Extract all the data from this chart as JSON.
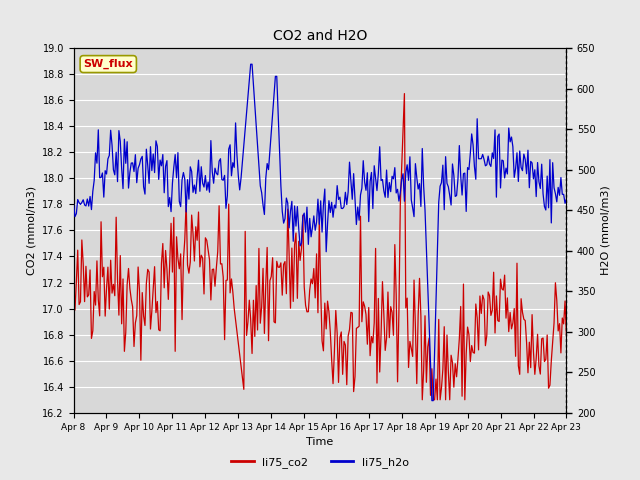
{
  "title": "CO2 and H2O",
  "xlabel": "Time",
  "ylabel_left": "CO2 (mmol/m3)",
  "ylabel_right": "H2O (mmol/m3)",
  "co2_ylim": [
    16.2,
    19.0
  ],
  "h2o_ylim": [
    200,
    650
  ],
  "co2_color": "#cc0000",
  "h2o_color": "#0000cc",
  "bg_color": "#e8e8e8",
  "plot_bg_color": "#d8d8d8",
  "grid_color": "#ffffff",
  "annotation_text": "SW_flux",
  "annotation_facecolor": "#ffffcc",
  "annotation_edgecolor": "#999900",
  "annotation_textcolor": "#cc0000",
  "x_tick_labels": [
    "Apr 8",
    "Apr 9",
    "Apr 10",
    "Apr 11",
    "Apr 12",
    "Apr 13",
    "Apr 14",
    "Apr 15",
    "Apr 16",
    "Apr 17",
    "Apr 18",
    "Apr 19",
    "Apr 20",
    "Apr 21",
    "Apr 22",
    "Apr 23"
  ],
  "legend_labels": [
    "li75_co2",
    "li75_h2o"
  ],
  "n_points": 360,
  "seed": 42
}
